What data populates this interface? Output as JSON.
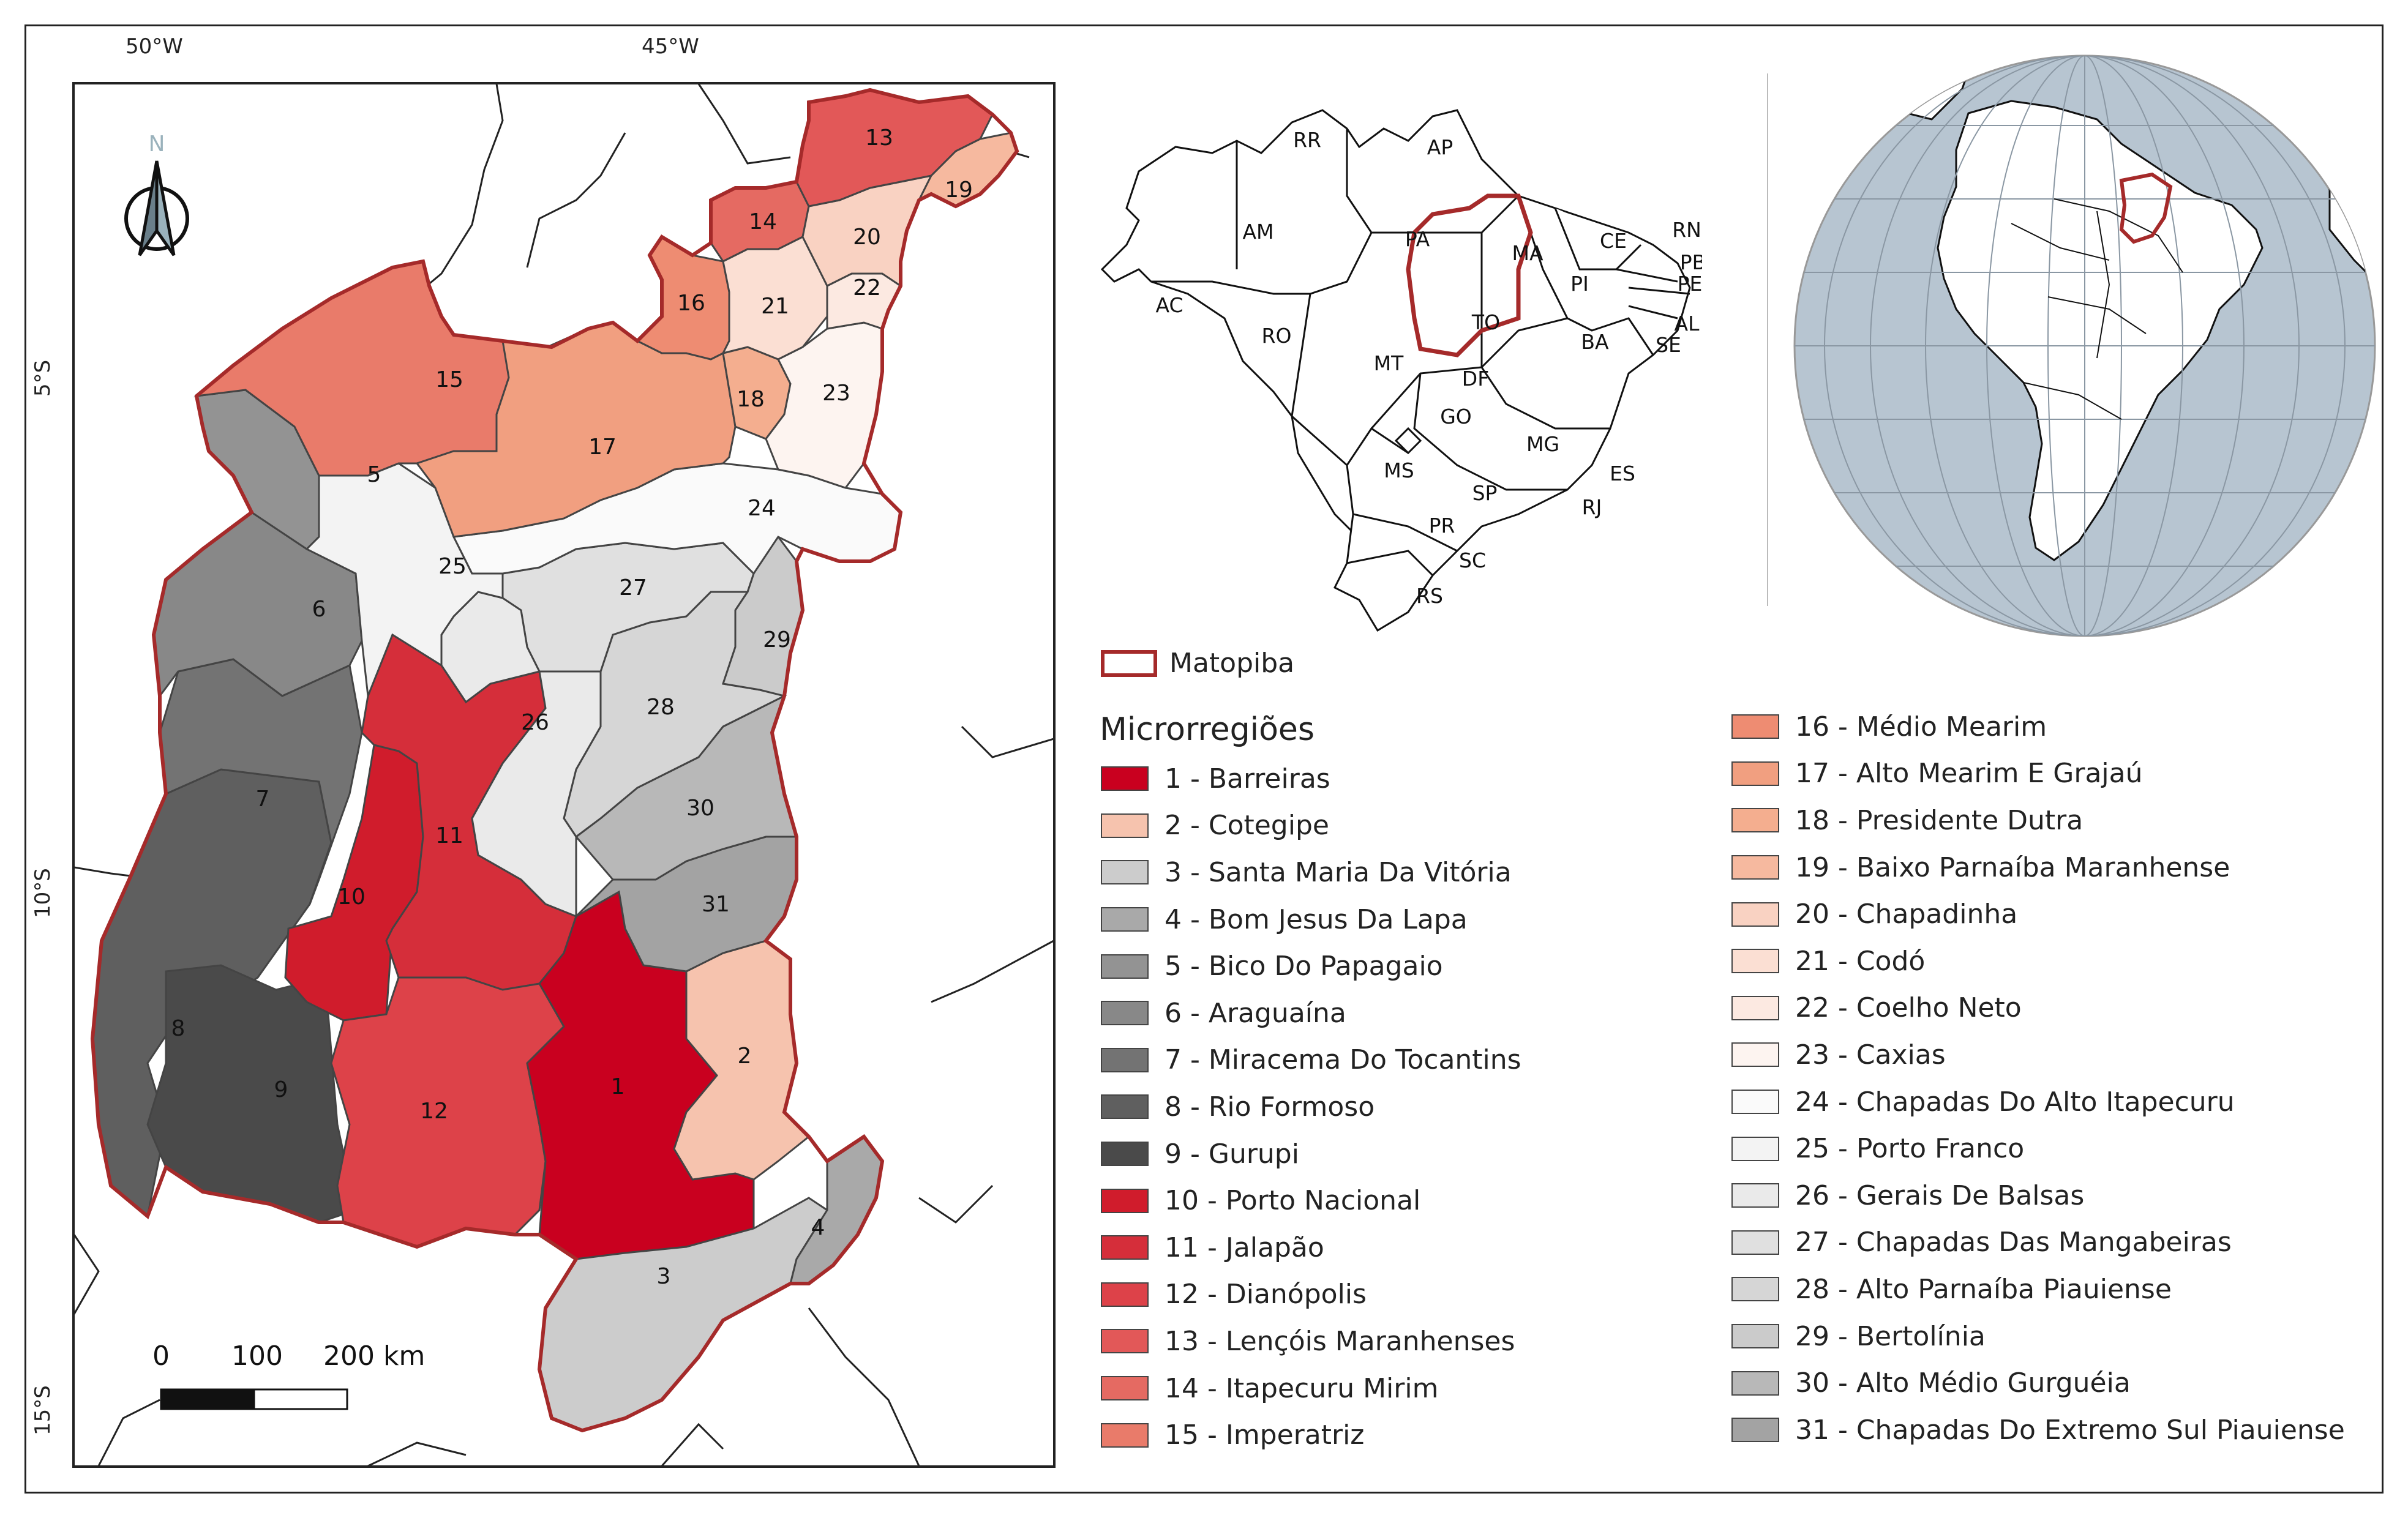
{
  "main_map": {
    "coords": {
      "lon_50": "50°W",
      "lon_45": "45°W",
      "lat_5": "5°S",
      "lat_10": "10°S",
      "lat_15": "15°S"
    },
    "north_arrow": {
      "label": "N",
      "icon": "north-arrow-icon"
    },
    "scale_bar": {
      "zero": "0",
      "mid": "100",
      "end": "200 km"
    },
    "region_labels": [
      "1",
      "2",
      "3",
      "4",
      "5",
      "6",
      "7",
      "8",
      "9",
      "10",
      "11",
      "12",
      "13",
      "14",
      "15",
      "16",
      "17",
      "18",
      "19",
      "20",
      "21",
      "22",
      "23",
      "24",
      "25",
      "26",
      "27",
      "28",
      "29",
      "30",
      "31"
    ]
  },
  "brazil_map": {
    "state_labels": [
      "RR",
      "AP",
      "AM",
      "PA",
      "MA",
      "CE",
      "RN",
      "PB",
      "PE",
      "PI",
      "AL",
      "SE",
      "AC",
      "RO",
      "MT",
      "TO",
      "BA",
      "DF",
      "GO",
      "MG",
      "ES",
      "MS",
      "SP",
      "RJ",
      "PR",
      "SC",
      "RS"
    ],
    "highlight_color": "#a52a2a"
  },
  "legend": {
    "matopiba_label": "Matopiba",
    "title": "Microrregiões",
    "items": [
      {
        "label": "1 - Barreiras",
        "color": "#c9001f"
      },
      {
        "label": "2 - Cotegipe",
        "color": "#f6c3ae"
      },
      {
        "label": "3 - Santa Maria Da Vitória",
        "color": "#cccccc"
      },
      {
        "label": "4 - Bom Jesus Da Lapa",
        "color": "#a9a9a9"
      },
      {
        "label": "5 - Bico Do Papagaio",
        "color": "#939393"
      },
      {
        "label": "6 - Araguaína",
        "color": "#888888"
      },
      {
        "label": "7 - Miracema Do Tocantins",
        "color": "#737373"
      },
      {
        "label": "8 - Rio Formoso",
        "color": "#5f5f5f"
      },
      {
        "label": "9 - Gurupi",
        "color": "#4a4a4a"
      },
      {
        "label": "10 - Porto Nacional",
        "color": "#d01c2c"
      },
      {
        "label": "11 - Jalapão",
        "color": "#d52e3a"
      },
      {
        "label": "12 - Dianópolis",
        "color": "#dd4249"
      },
      {
        "label": "13 - Lençóis Maranhenses",
        "color": "#e25858"
      },
      {
        "label": "14 - Itapecuru Mirim",
        "color": "#e56a62"
      },
      {
        "label": "15 - Imperatriz",
        "color": "#e97b6a"
      },
      {
        "label": "16 - Médio Mearim",
        "color": "#ee8c72"
      },
      {
        "label": "17 - Alto Mearim E Grajaú",
        "color": "#f19f80"
      },
      {
        "label": "18 - Presidente Dutra",
        "color": "#f4ae8f"
      },
      {
        "label": "19 - Baixo Parnaíba Maranhense",
        "color": "#f6b99f"
      },
      {
        "label": "20 - Chapadinha",
        "color": "#f9d2c2"
      },
      {
        "label": "21 - Codó",
        "color": "#fbdfd3"
      },
      {
        "label": "22 - Coelho Neto",
        "color": "#fce9e1"
      },
      {
        "label": "23 - Caxias",
        "color": "#fdf4f0"
      },
      {
        "label": "24 - Chapadas Do Alto Itapecuru",
        "color": "#fafafa"
      },
      {
        "label": "25 - Porto Franco",
        "color": "#f3f3f3"
      },
      {
        "label": "26 - Gerais De Balsas",
        "color": "#eaeaea"
      },
      {
        "label": "27 - Chapadas Das Mangabeiras",
        "color": "#e0e0e0"
      },
      {
        "label": "28 - Alto Parnaíba Piauiense",
        "color": "#d6d6d6"
      },
      {
        "label": "29 - Bertolínia",
        "color": "#cbcbcb"
      },
      {
        "label": "30 - Alto Médio Gurguéia",
        "color": "#b8b8b8"
      },
      {
        "label": "31 - Chapadas Do Extremo Sul Piauiense",
        "color": "#a3a3a3"
      }
    ]
  }
}
